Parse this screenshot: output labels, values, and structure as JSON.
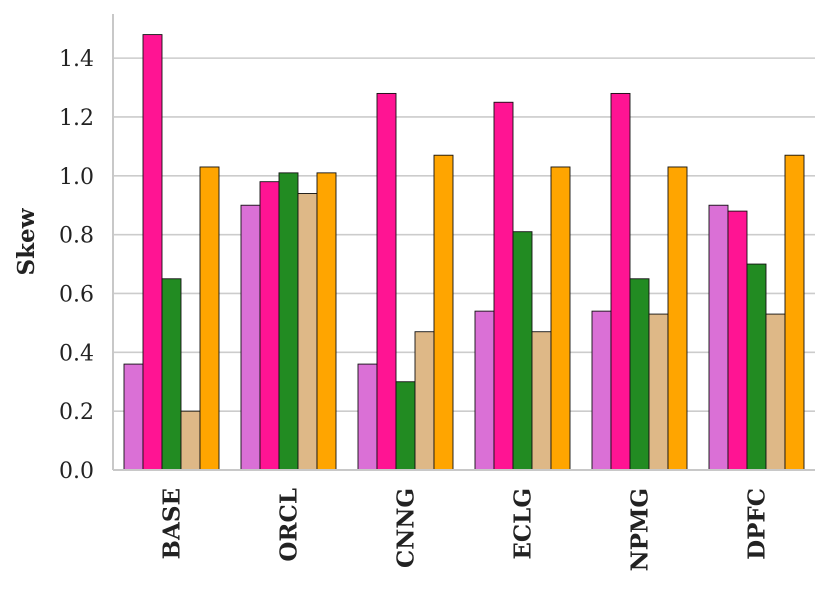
{
  "chart_data": {
    "type": "bar",
    "title": "",
    "xlabel": "",
    "ylabel": "Skew",
    "ylim": [
      0,
      1.55
    ],
    "yticks": [
      "0.0",
      "0.2",
      "0.4",
      "0.6",
      "0.8",
      "1.0",
      "1.2",
      "1.4"
    ],
    "grid": "horizontal",
    "legend": "none",
    "categories": [
      "BASE",
      "ORCL",
      "CNNG",
      "ECLG",
      "NPMG",
      "DPFC"
    ],
    "series": [
      {
        "color": "#da70d6",
        "values": [
          0.36,
          0.9,
          0.36,
          0.54,
          0.54,
          0.9
        ]
      },
      {
        "color": "#ff1493",
        "values": [
          1.48,
          0.98,
          1.28,
          1.25,
          1.28,
          0.88
        ]
      },
      {
        "color": "#228b22",
        "values": [
          0.65,
          1.01,
          0.3,
          0.81,
          0.65,
          0.7
        ]
      },
      {
        "color": "#deb887",
        "values": [
          0.2,
          0.94,
          0.47,
          0.47,
          0.53,
          0.53
        ]
      },
      {
        "color": "#ffa500",
        "values": [
          1.03,
          1.01,
          1.07,
          1.03,
          1.03,
          1.07
        ]
      }
    ]
  }
}
